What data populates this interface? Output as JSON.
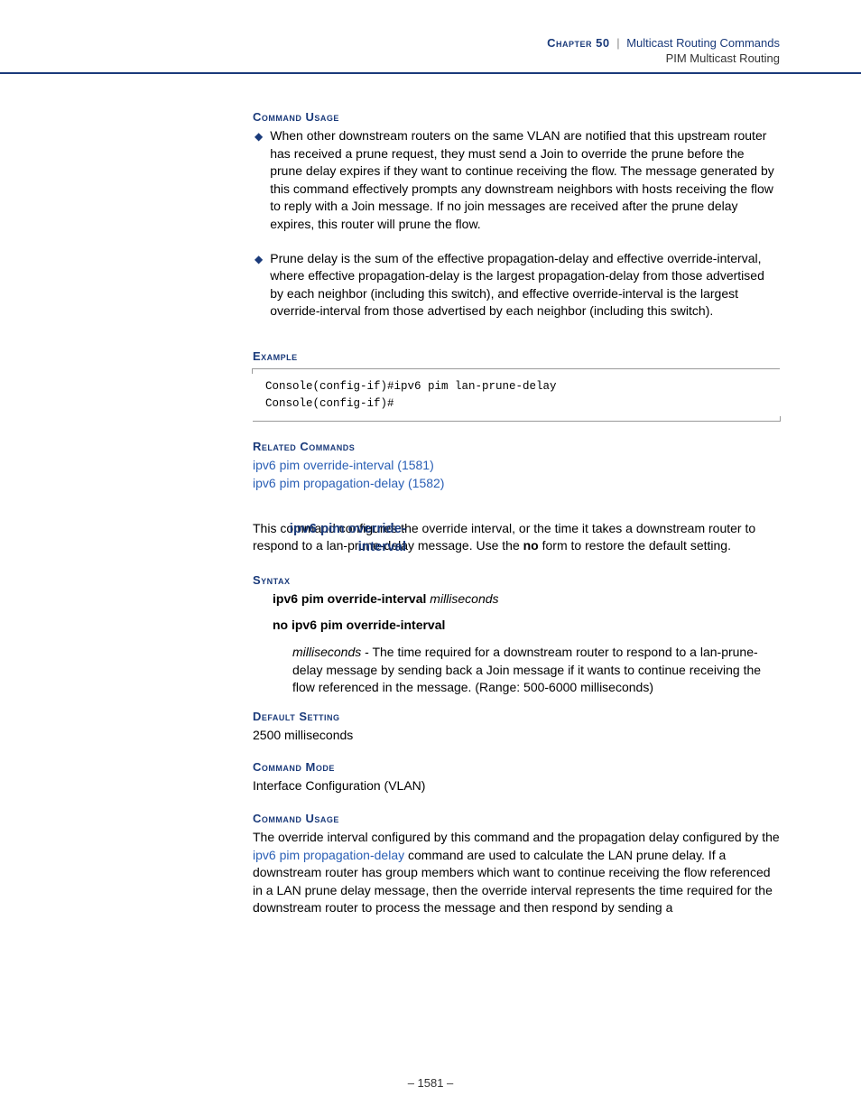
{
  "header": {
    "chapter_label": "Chapter 50",
    "separator": "|",
    "section": "Multicast Routing Commands",
    "subsection": "PIM Multicast Routing"
  },
  "sections": {
    "command_usage_1": {
      "heading": "Command Usage",
      "bullets": [
        "When other downstream routers on the same VLAN are notified that this upstream router has received a prune request, they must send a Join to override the prune before the prune delay expires if they want to continue receiving the flow. The message generated by this command effectively prompts any downstream neighbors with hosts receiving the flow to reply with a Join message. If no join messages are received after the prune delay expires, this router will prune the flow.",
        "Prune delay is the sum of the effective propagation-delay and effective override-interval, where effective propagation-delay is the largest propagation-delay from those advertised by each neighbor (including this switch), and effective override-interval is the largest override-interval from those advertised by each neighbor (including this switch)."
      ]
    },
    "example": {
      "heading": "Example",
      "line1": "Console(config-if)#ipv6 pim lan-prune-delay",
      "line2": "Console(config-if)#"
    },
    "related": {
      "heading": "Related Commands",
      "links": [
        "ipv6 pim override-interval (1581)",
        "ipv6 pim propagation-delay (1582)"
      ]
    },
    "command": {
      "title": "ipv6 pim override-interval",
      "desc_pre": "This command configures the override interval, or the time it takes a downstream router to respond to a lan-prune-delay message. Use the ",
      "desc_bold": "no",
      "desc_post": " form to restore the default setting."
    },
    "syntax": {
      "heading": "Syntax",
      "line1_bold": "ipv6 pim override-interval",
      "line1_italic": "milliseconds",
      "line2_bold": "no ipv6 pim override-interval",
      "param_italic": "milliseconds",
      "param_text": " - The time required for a downstream router to respond to a lan-prune-delay message by sending back a Join message if it wants to continue receiving the flow referenced in the message. (Range: 500-6000 milliseconds)"
    },
    "default_setting": {
      "heading": "Default Setting",
      "value": "2500 milliseconds"
    },
    "command_mode": {
      "heading": "Command Mode",
      "value": "Interface Configuration (VLAN)"
    },
    "command_usage_2": {
      "heading": "Command Usage",
      "text_pre": "The override interval configured by this command and the propagation delay configured by the ",
      "link": "ipv6 pim propagation-delay",
      "text_post": " command are used to calculate the LAN prune delay. If a downstream router has group members which want to continue receiving the flow referenced in a LAN prune delay message, then the override interval represents the time required for the downstream router to process the message and then respond by sending a"
    }
  },
  "footer": {
    "page_number": "–  1581  –"
  }
}
